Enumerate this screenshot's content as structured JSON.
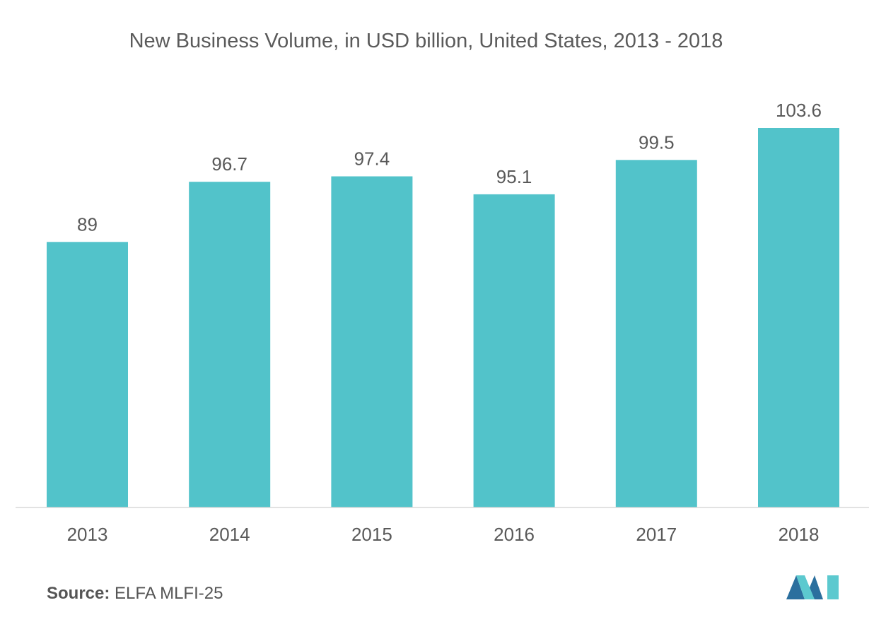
{
  "chart_data": {
    "type": "bar",
    "title": "New Business Volume, in USD billion, United States, 2013 - 2018",
    "categories": [
      "2013",
      "2014",
      "2015",
      "2016",
      "2017",
      "2018"
    ],
    "values": [
      89,
      96.7,
      97.4,
      95.1,
      99.5,
      103.6
    ],
    "value_labels": [
      "89",
      "96.7",
      "97.4",
      "95.1",
      "99.5",
      "103.6"
    ],
    "xlabel": "",
    "ylabel": "",
    "ylim": [
      55,
      108
    ],
    "grid": false,
    "legend": "none"
  },
  "colors": {
    "bar": "#52c3ca",
    "axis": "#d9d9d9",
    "text": "#595959",
    "logo_dark": "#2b6f9e",
    "logo_light": "#5cc9cf"
  },
  "source": {
    "label": "Source:",
    "text": "ELFA MLFI-25"
  },
  "logo": {
    "icon": "mordor-intelligence-logo-icon"
  }
}
